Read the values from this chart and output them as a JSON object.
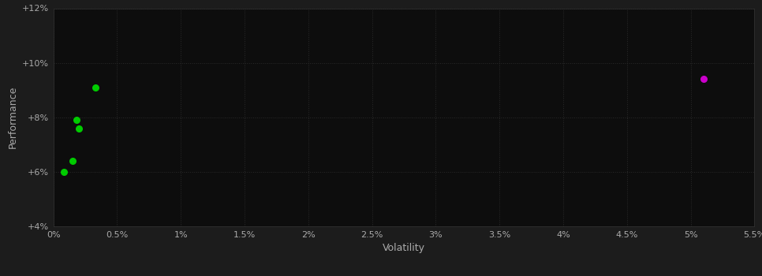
{
  "background_color": "#1c1c1c",
  "plot_bg_color": "#0d0d0d",
  "grid_color": "#2a2a2a",
  "text_color": "#aaaaaa",
  "xlabel": "Volatility",
  "ylabel": "Performance",
  "xlim": [
    0,
    0.055
  ],
  "ylim": [
    0.04,
    0.12
  ],
  "x_ticks": [
    0.0,
    0.005,
    0.01,
    0.015,
    0.02,
    0.025,
    0.03,
    0.035,
    0.04,
    0.045,
    0.05,
    0.055
  ],
  "x_tick_labels": [
    "0%",
    "0.5%",
    "1%",
    "1.5%",
    "2%",
    "2.5%",
    "3%",
    "3.5%",
    "4%",
    "4.5%",
    "5%",
    "5.5%"
  ],
  "y_ticks": [
    0.04,
    0.06,
    0.08,
    0.1,
    0.12
  ],
  "y_tick_labels": [
    "+4%",
    "+6%",
    "+8%",
    "+10%",
    "+12%"
  ],
  "green_points": [
    [
      0.0033,
      0.091
    ],
    [
      0.0018,
      0.079
    ],
    [
      0.002,
      0.076
    ],
    [
      0.0015,
      0.064
    ],
    [
      0.0008,
      0.06
    ]
  ],
  "magenta_points": [
    [
      0.051,
      0.094
    ]
  ],
  "point_size": 30,
  "green_color": "#00cc00",
  "magenta_color": "#cc00cc"
}
